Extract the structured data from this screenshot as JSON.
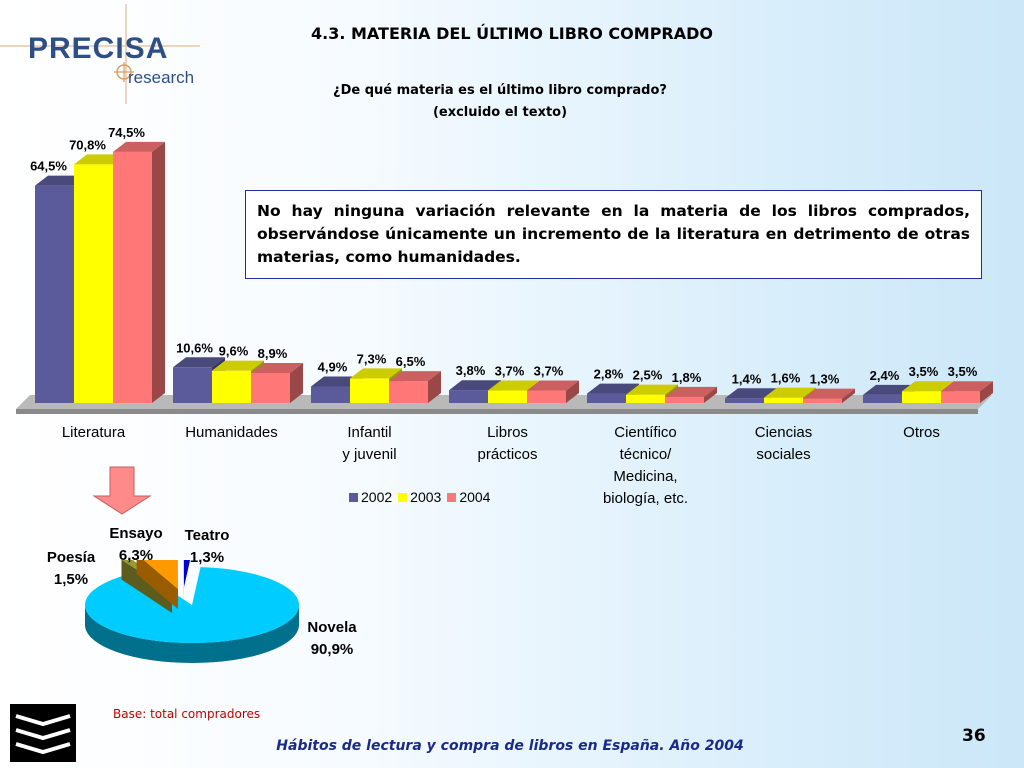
{
  "header": {
    "logo_word": "PRECISA",
    "logo_sub": "research",
    "title": "4.3. MATERIA DEL ÚLTIMO LIBRO COMPRADO",
    "question_line1": "¿De qué materia es el último libro comprado?",
    "question_line2": "(excluido el texto)"
  },
  "note": "No hay ninguna variación relevante en la materia de los libros comprados, observándose únicamente un incremento de la literatura en detrimento de otras materias, como humanidades.",
  "colors": {
    "2002": "#5b5b9b",
    "2003": "#ffff00",
    "2004": "#ff7777",
    "novela": "#00ccff",
    "ensayo": "#ff9900",
    "poesia": "#999933",
    "teatro": "#0000cc",
    "accent": "#1a2a8a"
  },
  "chart_data": [
    {
      "type": "bar",
      "categories": [
        [
          "Literatura"
        ],
        [
          "Humanidades"
        ],
        [
          "Infantil",
          "y juvenil"
        ],
        [
          "Libros",
          "prácticos"
        ],
        [
          "Científico",
          "técnico/",
          "Medicina,",
          "biología, etc."
        ],
        [
          "Ciencias",
          "sociales"
        ],
        [
          "Otros"
        ]
      ],
      "series": [
        {
          "name": "2002",
          "values": [
            64.5,
            10.6,
            4.9,
            3.8,
            2.8,
            1.4,
            2.4
          ],
          "labels": [
            "64,5%",
            "10,6%",
            "4,9%",
            "3,8%",
            "2,8%",
            "1,4%",
            "2,4%"
          ]
        },
        {
          "name": "2003",
          "values": [
            70.8,
            9.6,
            7.3,
            3.7,
            2.5,
            1.6,
            3.5
          ],
          "labels": [
            "70,8%",
            "9,6%",
            "7,3%",
            "3,7%",
            "2,5%",
            "1,6%",
            "3,5%"
          ]
        },
        {
          "name": "2004",
          "values": [
            74.5,
            8.9,
            6.5,
            3.7,
            1.8,
            1.3,
            3.5
          ],
          "labels": [
            "74,5%",
            "8,9%",
            "6,5%",
            "3,7%",
            "1,8%",
            "1,3%",
            "3,5%"
          ]
        }
      ],
      "legend_position": "bottom",
      "ylim": [
        0,
        80
      ]
    },
    {
      "type": "pie",
      "slices": [
        {
          "name": "Novela",
          "value": 90.9,
          "label": "90,9%"
        },
        {
          "name": "Poesía",
          "value": 1.5,
          "label": "1,5%"
        },
        {
          "name": "Ensayo",
          "value": 6.3,
          "label": "6,3%"
        },
        {
          "name": "Teatro",
          "value": 1.3,
          "label": "1,3%"
        }
      ]
    }
  ],
  "footer": {
    "base": "Base: total compradores",
    "text": "Hábitos de lectura y compra de libros en España. Año 2004",
    "page": "36"
  }
}
